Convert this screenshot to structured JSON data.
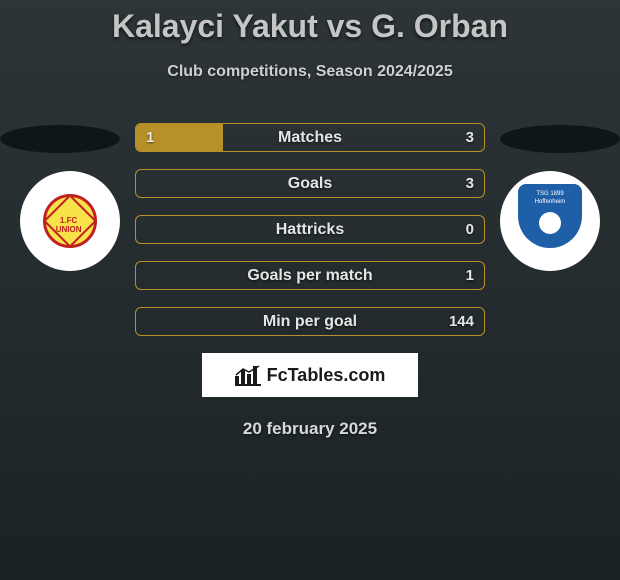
{
  "title": "Kalayci Yakut vs G. Orban",
  "subtitle": "Club competitions, Season 2024/2025",
  "date": "20 february 2025",
  "brand": "FcTables.com",
  "left_team": {
    "name": "1.FC UNION",
    "badge_border_color": "#c02020",
    "badge_fill_color": "#f8e24a"
  },
  "right_team": {
    "name_line1": "TSG 1899",
    "name_line2": "Hoffenheim",
    "shield_color": "#1e5fa8"
  },
  "stats": [
    {
      "label": "Matches",
      "left_val": "1",
      "right_val": "3",
      "left_fill_pct": 25,
      "right_fill_pct": 0
    },
    {
      "label": "Goals",
      "left_val": "",
      "right_val": "3",
      "left_fill_pct": 0,
      "right_fill_pct": 0
    },
    {
      "label": "Hattricks",
      "left_val": "",
      "right_val": "0",
      "left_fill_pct": 0,
      "right_fill_pct": 0
    },
    {
      "label": "Goals per match",
      "left_val": "",
      "right_val": "1",
      "left_fill_pct": 0,
      "right_fill_pct": 0
    },
    {
      "label": "Min per goal",
      "left_val": "",
      "right_val": "144",
      "left_fill_pct": 0,
      "right_fill_pct": 0
    }
  ],
  "colors": {
    "accent": "#b89028",
    "background_top": "#2d3538",
    "background_bottom": "#1a2224",
    "text_primary": "#e5e5e5"
  }
}
